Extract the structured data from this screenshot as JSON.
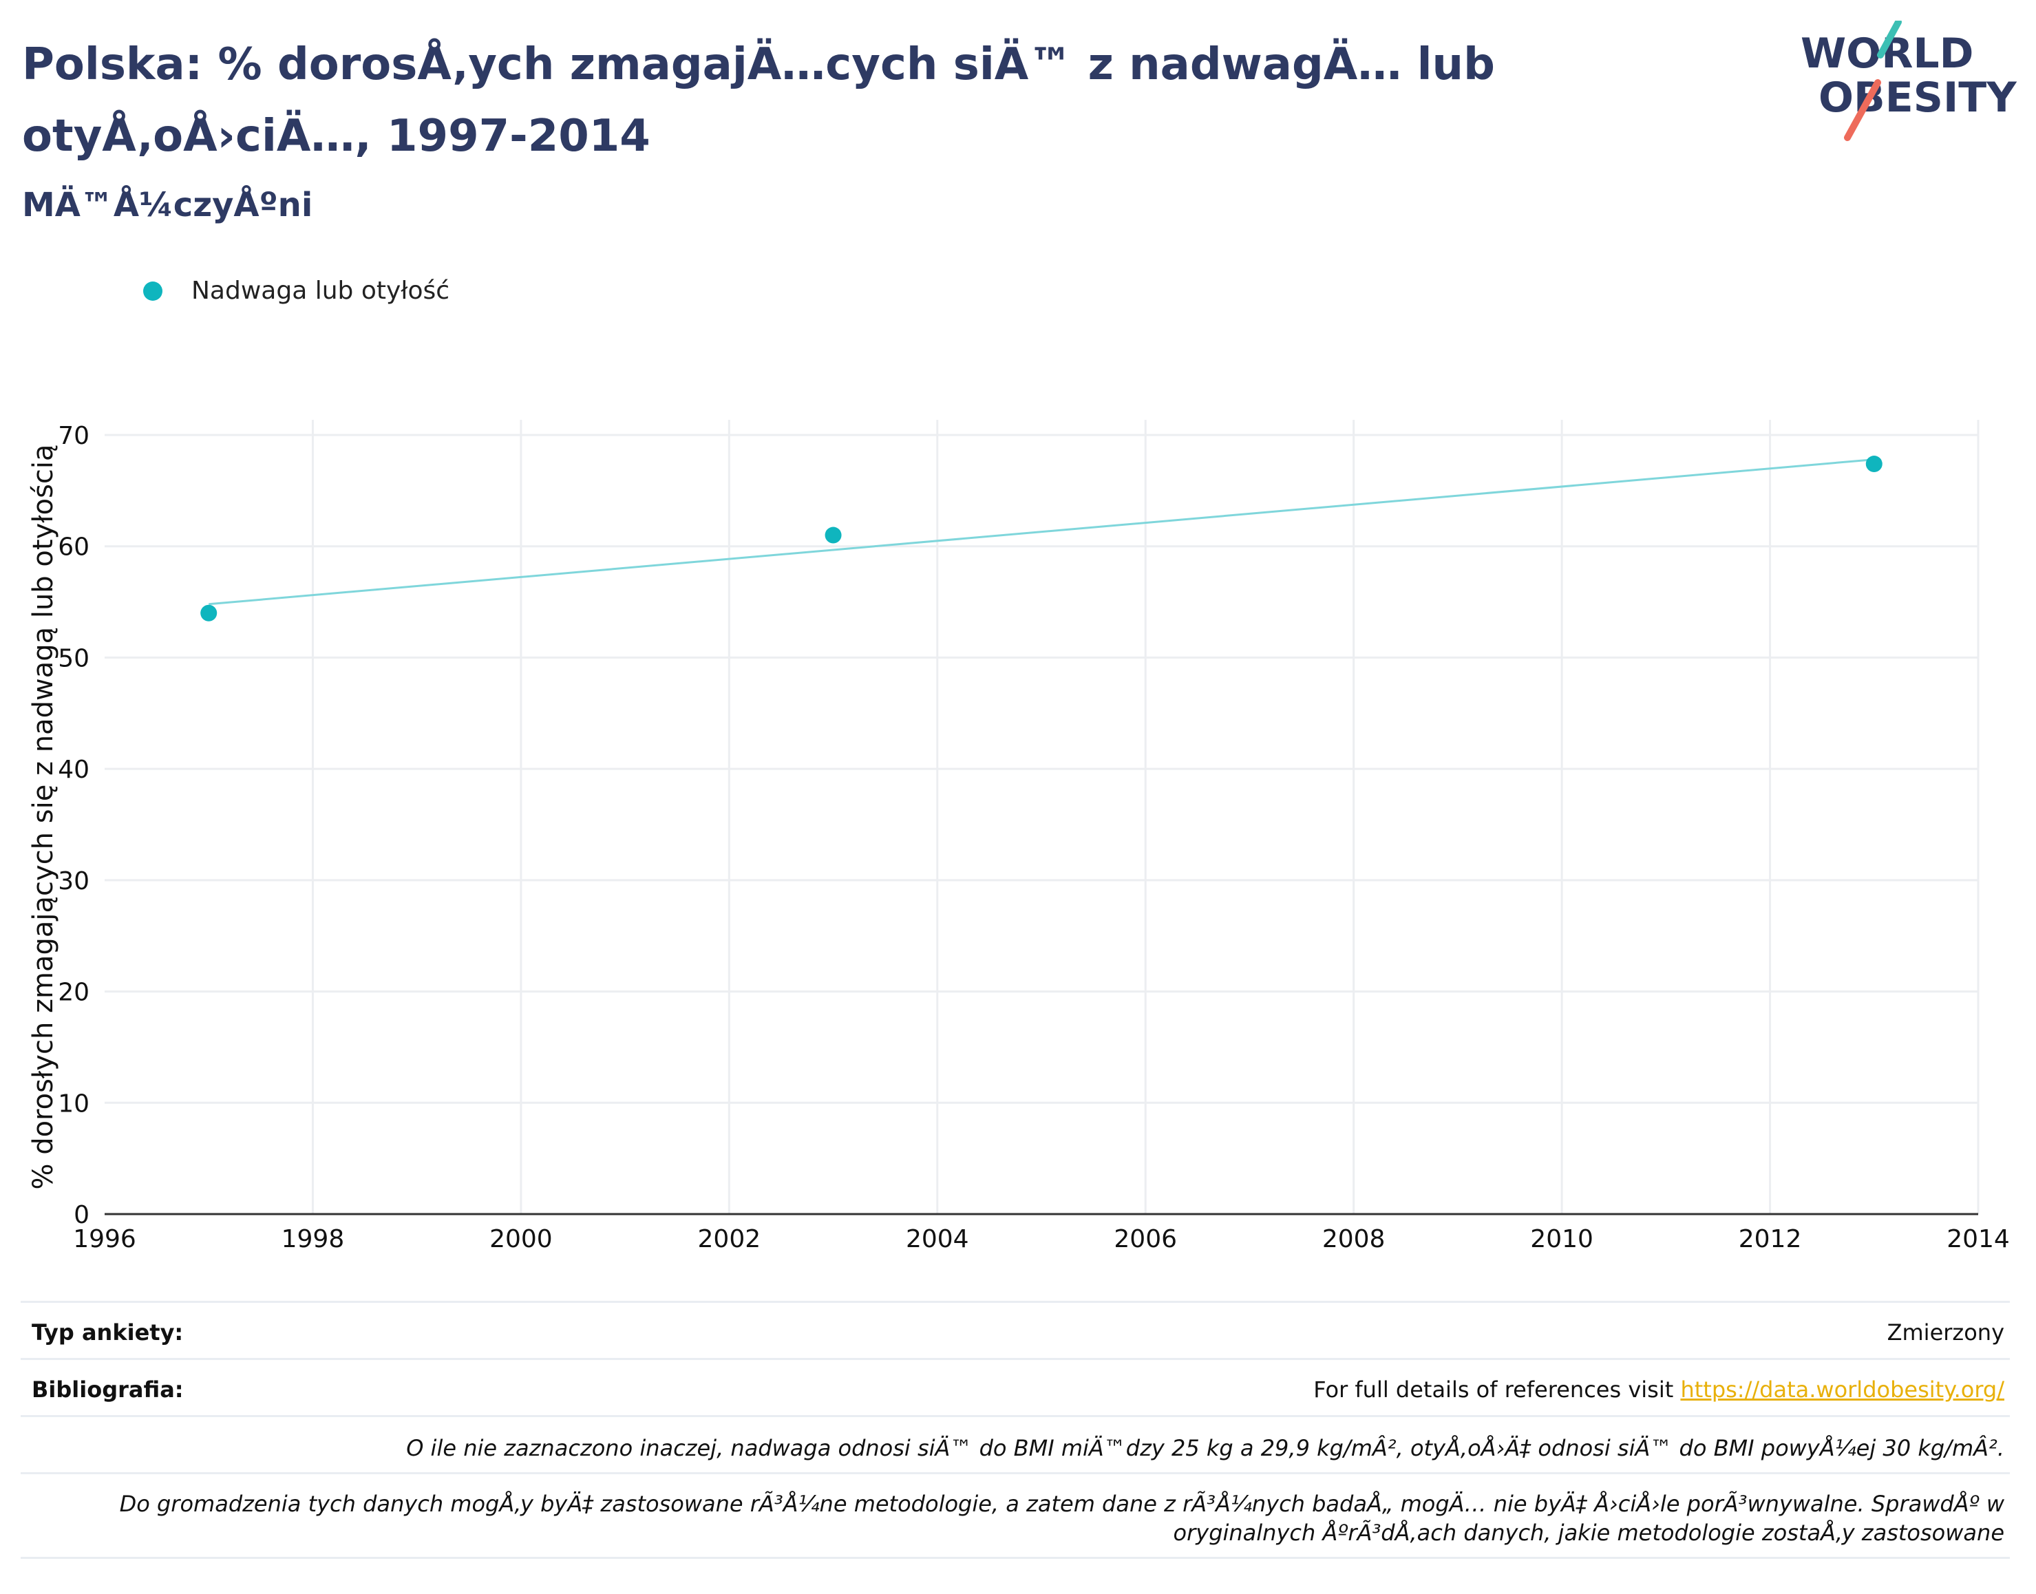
{
  "header": {
    "title": "Polska: % dorosÅ‚ych zmagajÄ…cych siÄ™ z nadwagÄ… lub otyÅ‚oÅ›ciÄ…, 1997-2014",
    "subtitle": "MÄ™Å¼czyÅºni",
    "logo_line1": "WORLD",
    "logo_line2": "OBESITY"
  },
  "colors": {
    "title": "#2e3a63",
    "series": "#0fb5be",
    "trendline": "#7fd6db",
    "link": "#e8b00a",
    "logo_teal": "#3cbfb4",
    "logo_coral": "#ee6b5b"
  },
  "legend": {
    "label": "Nadwaga lub otyłość",
    "position": "top-left"
  },
  "chart_data": {
    "type": "scatter",
    "title": "",
    "xlabel": "",
    "ylabel": "% dorosłych zmagających się z nadwagą lub otyłością",
    "xlim": [
      1996,
      2014
    ],
    "ylim": [
      0,
      70
    ],
    "xticks": [
      "1996",
      "1998",
      "2000",
      "2002",
      "2004",
      "2006",
      "2008",
      "2010",
      "2012",
      "2014"
    ],
    "yticks": [
      "0",
      "10",
      "20",
      "30",
      "40",
      "50",
      "60",
      "70"
    ],
    "grid": true,
    "series": [
      {
        "name": "Nadwaga lub otyłość",
        "x": [
          1997,
          2003,
          2013
        ],
        "y": [
          54,
          61,
          67.4
        ]
      }
    ],
    "trendline": {
      "x": [
        1997,
        2013
      ],
      "y": [
        54.8,
        67.8
      ]
    }
  },
  "footer": {
    "survey_label": "Typ ankiety:",
    "survey_value": "Zmierzony",
    "bib_label": "Bibliografia:",
    "bib_text": "For full details of references visit ",
    "bib_link": "https://data.worldobesity.org/",
    "note1": "O ile nie zaznaczono inaczej, nadwaga odnosi siÄ™ do BMI miÄ™dzy 25 kg a 29,9 kg/mÂ², otyÅ‚oÅ›Ä‡ odnosi siÄ™ do BMI powyÅ¼ej 30 kg/mÂ².",
    "note2": "Do gromadzenia tych danych mogÅ‚y byÄ‡ zastosowane rÃ³Å¼ne metodologie, a zatem dane z rÃ³Å¼nych badaÅ„ mogÄ… nie byÄ‡ Å›ciÅ›le porÃ³wnywalne. SprawdÅº w oryginalnych ÅºrÃ³dÅ‚ach danych, jakie metodologie zostaÅ‚y zastosowane"
  }
}
